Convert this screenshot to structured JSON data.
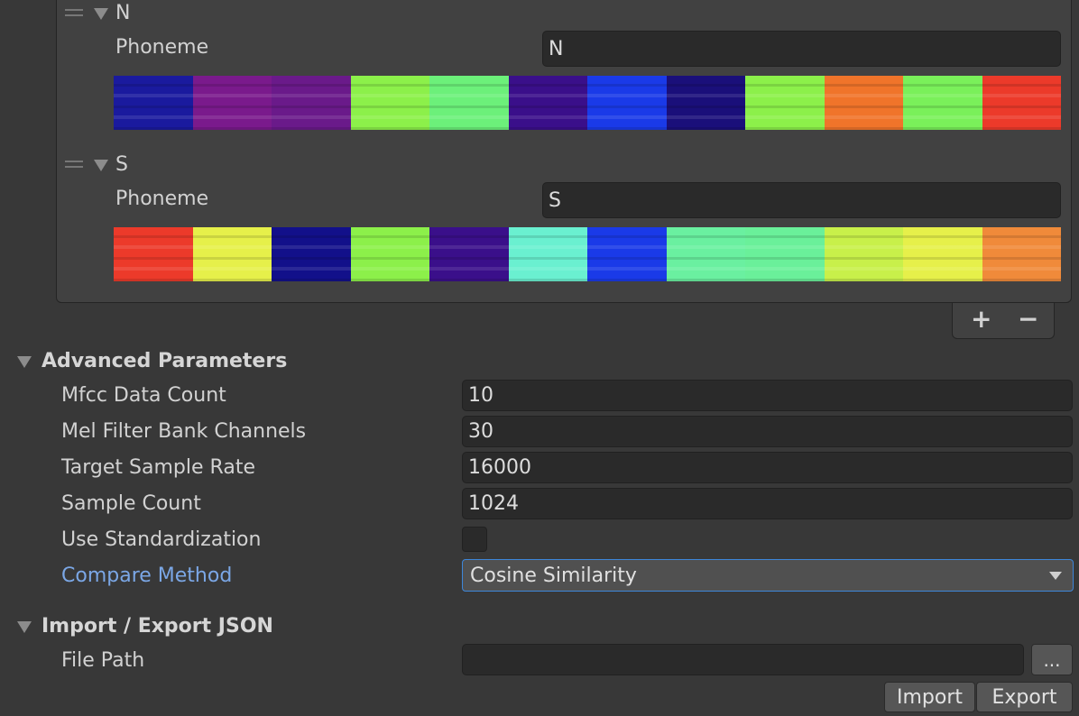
{
  "phonemes": [
    {
      "header": "N",
      "label": "Phoneme",
      "value": "N",
      "colors": [
        "#1a1a9e",
        "#7a1a8c",
        "#6a1a8a",
        "#8cf04a",
        "#6cf07a",
        "#3a0f8a",
        "#1a3ae8",
        "#1a0f7a",
        "#8cf04a",
        "#f0742a",
        "#7af05a",
        "#ec3a2a"
      ]
    },
    {
      "header": "S",
      "label": "Phoneme",
      "value": "S",
      "colors": [
        "#ec3a2a",
        "#e6f04a",
        "#12108a",
        "#8cf04a",
        "#3a0f8a",
        "#6af0d0",
        "#1a3ae8",
        "#6af0a0",
        "#6af09a",
        "#c8f04a",
        "#e6f04a",
        "#f08a3a"
      ]
    }
  ],
  "list_controls": {
    "add": "+",
    "remove": "−"
  },
  "advanced": {
    "title": "Advanced Parameters",
    "mfcc_label": "Mfcc Data Count",
    "mfcc_value": "10",
    "mel_label": "Mel Filter Bank Channels",
    "mel_value": "30",
    "rate_label": "Target Sample Rate",
    "rate_value": "16000",
    "count_label": "Sample Count",
    "count_value": "1024",
    "std_label": "Use Standardization",
    "compare_label": "Compare Method",
    "compare_value": "Cosine Similarity"
  },
  "io": {
    "title": "Import / Export JSON",
    "path_label": "File Path",
    "path_value": "",
    "browse": "...",
    "import": "Import",
    "export": "Export"
  }
}
